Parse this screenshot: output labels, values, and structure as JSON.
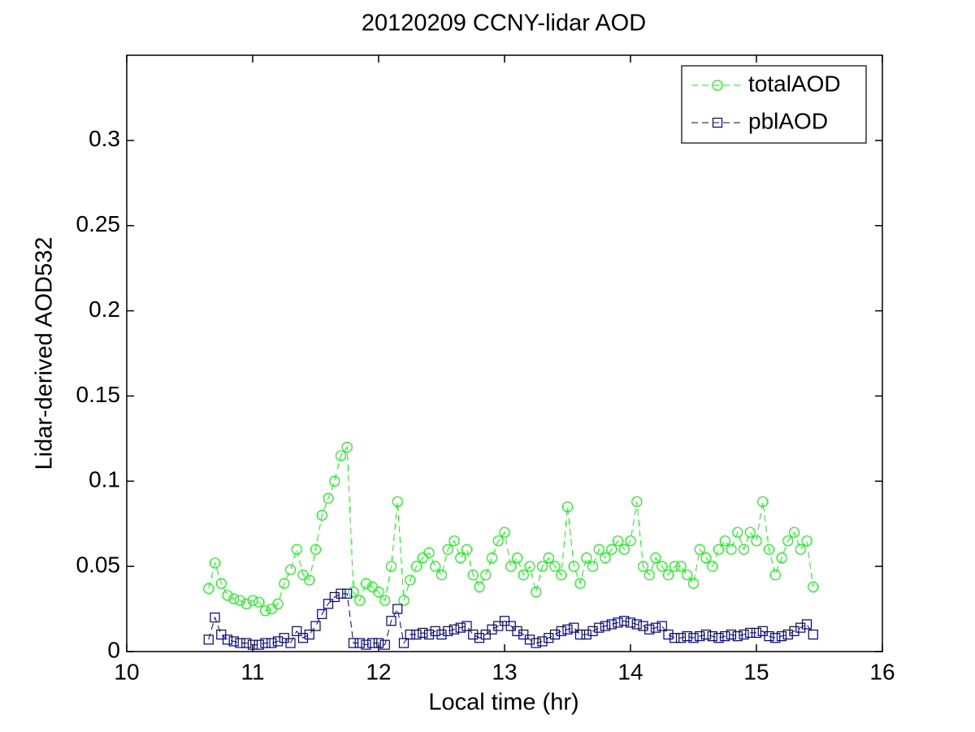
{
  "chart_data": {
    "type": "line",
    "title": "20120209 CCNY-lidar AOD",
    "xlabel": "Local time (hr)",
    "ylabel": "Lidar-derived AOD532",
    "xlim": [
      10,
      16
    ],
    "xticks": [
      10,
      11,
      12,
      13,
      14,
      15,
      16
    ],
    "ylim": [
      0,
      0.35
    ],
    "yticks": [
      0,
      0.05,
      0.1,
      0.15,
      0.2,
      0.25,
      0.3
    ],
    "grid": false,
    "legend": "upper right",
    "x": [
      10.65,
      10.7,
      10.75,
      10.8,
      10.85,
      10.9,
      10.95,
      11,
      11.05,
      11.1,
      11.15,
      11.2,
      11.25,
      11.3,
      11.35,
      11.4,
      11.45,
      11.5,
      11.55,
      11.6,
      11.65,
      11.7,
      11.75,
      11.8,
      11.85,
      11.9,
      11.95,
      12,
      12.05,
      12.1,
      12.15,
      12.2,
      12.25,
      12.3,
      12.35,
      12.4,
      12.45,
      12.5,
      12.55,
      12.6,
      12.65,
      12.7,
      12.75,
      12.8,
      12.85,
      12.9,
      12.95,
      13,
      13.05,
      13.1,
      13.15,
      13.2,
      13.25,
      13.3,
      13.35,
      13.4,
      13.45,
      13.5,
      13.55,
      13.6,
      13.65,
      13.7,
      13.75,
      13.8,
      13.85,
      13.9,
      13.95,
      14,
      14.05,
      14.1,
      14.15,
      14.2,
      14.25,
      14.3,
      14.35,
      14.4,
      14.45,
      14.5,
      14.55,
      14.6,
      14.65,
      14.7,
      14.75,
      14.8,
      14.85,
      14.9,
      14.95,
      15,
      15.05,
      15.1,
      15.15,
      15.2,
      15.25,
      15.3,
      15.35,
      15.4,
      15.45
    ],
    "series": [
      {
        "name": "totalAOD",
        "color": "#00ff00",
        "marker": "circle",
        "linestyle": "dashed",
        "values": [
          0.037,
          0.052,
          0.04,
          0.033,
          0.031,
          0.03,
          0.028,
          0.03,
          0.029,
          0.024,
          0.025,
          0.028,
          0.04,
          0.048,
          0.06,
          0.045,
          0.042,
          0.06,
          0.08,
          0.09,
          0.1,
          0.115,
          0.12,
          0.035,
          0.03,
          0.04,
          0.038,
          0.035,
          0.03,
          0.05,
          0.088,
          0.03,
          0.042,
          0.05,
          0.055,
          0.058,
          0.05,
          0.045,
          0.06,
          0.065,
          0.055,
          0.06,
          0.045,
          0.038,
          0.045,
          0.055,
          0.065,
          0.07,
          0.05,
          0.055,
          0.045,
          0.05,
          0.035,
          0.05,
          0.055,
          0.05,
          0.045,
          0.085,
          0.05,
          0.04,
          0.055,
          0.05,
          0.06,
          0.055,
          0.06,
          0.065,
          0.06,
          0.065,
          0.088,
          0.05,
          0.045,
          0.055,
          0.05,
          0.045,
          0.05,
          0.05,
          0.045,
          0.04,
          0.06,
          0.055,
          0.05,
          0.06,
          0.065,
          0.06,
          0.07,
          0.06,
          0.07,
          0.065,
          0.088,
          0.06,
          0.045,
          0.055,
          0.065,
          0.07,
          0.06,
          0.065,
          0.038
        ]
      },
      {
        "name": "pblAOD",
        "color": "#00008b",
        "marker": "square",
        "linestyle": "dashed",
        "values": [
          0.007,
          0.02,
          0.01,
          0.007,
          0.006,
          0.005,
          0.005,
          0.004,
          0.004,
          0.005,
          0.005,
          0.006,
          0.008,
          0.005,
          0.012,
          0.008,
          0.01,
          0.015,
          0.022,
          0.028,
          0.032,
          0.034,
          0.034,
          0.005,
          0.005,
          0.004,
          0.005,
          0.005,
          0.004,
          0.018,
          0.025,
          0.005,
          0.01,
          0.01,
          0.011,
          0.01,
          0.012,
          0.01,
          0.012,
          0.013,
          0.014,
          0.015,
          0.01,
          0.008,
          0.01,
          0.013,
          0.015,
          0.018,
          0.015,
          0.012,
          0.01,
          0.007,
          0.005,
          0.006,
          0.008,
          0.01,
          0.012,
          0.013,
          0.014,
          0.01,
          0.01,
          0.012,
          0.014,
          0.015,
          0.016,
          0.017,
          0.018,
          0.017,
          0.016,
          0.015,
          0.013,
          0.014,
          0.015,
          0.01,
          0.008,
          0.008,
          0.009,
          0.008,
          0.009,
          0.01,
          0.009,
          0.008,
          0.009,
          0.01,
          0.009,
          0.01,
          0.011,
          0.011,
          0.012,
          0.009,
          0.008,
          0.009,
          0.01,
          0.012,
          0.014,
          0.016,
          0.01
        ]
      }
    ]
  }
}
